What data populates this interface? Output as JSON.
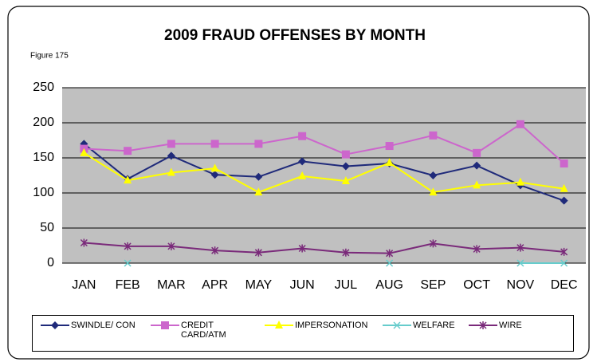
{
  "chart_data": {
    "type": "line",
    "title": "2009 FRAUD OFFENSES BY MONTH",
    "subtitle": "Figure 175",
    "categories": [
      "JAN",
      "FEB",
      "MAR",
      "APR",
      "MAY",
      "JUN",
      "JUL",
      "AUG",
      "SEP",
      "OCT",
      "NOV",
      "DEC"
    ],
    "ylim": [
      0,
      250
    ],
    "yticks": [
      0,
      50,
      100,
      150,
      200,
      250
    ],
    "grid": true,
    "legend": "bottom",
    "series": [
      {
        "name": "SWINDLE/ CON",
        "color": "#1f2a7a",
        "marker": "diamond",
        "values": [
          170,
          120,
          153,
          126,
          123,
          145,
          138,
          142,
          125,
          139,
          111,
          89
        ]
      },
      {
        "name": "CREDIT CARD/ATM",
        "color": "#cc66cc",
        "marker": "square",
        "values": [
          163,
          160,
          170,
          170,
          170,
          181,
          155,
          167,
          182,
          157,
          198,
          142
        ]
      },
      {
        "name": "IMPERSONATION",
        "color": "#ffff00",
        "marker": "triangle",
        "values": [
          157,
          118,
          129,
          135,
          101,
          124,
          117,
          143,
          101,
          111,
          115,
          106
        ]
      },
      {
        "name": "WELFARE",
        "color": "#66cccc",
        "marker": "x",
        "values": [
          null,
          0,
          null,
          null,
          null,
          null,
          null,
          0,
          null,
          null,
          0,
          0
        ]
      },
      {
        "name": "WIRE",
        "color": "#7a2a7a",
        "marker": "star",
        "values": [
          29,
          24,
          24,
          18,
          15,
          21,
          15,
          14,
          28,
          20,
          22,
          16
        ]
      }
    ]
  }
}
